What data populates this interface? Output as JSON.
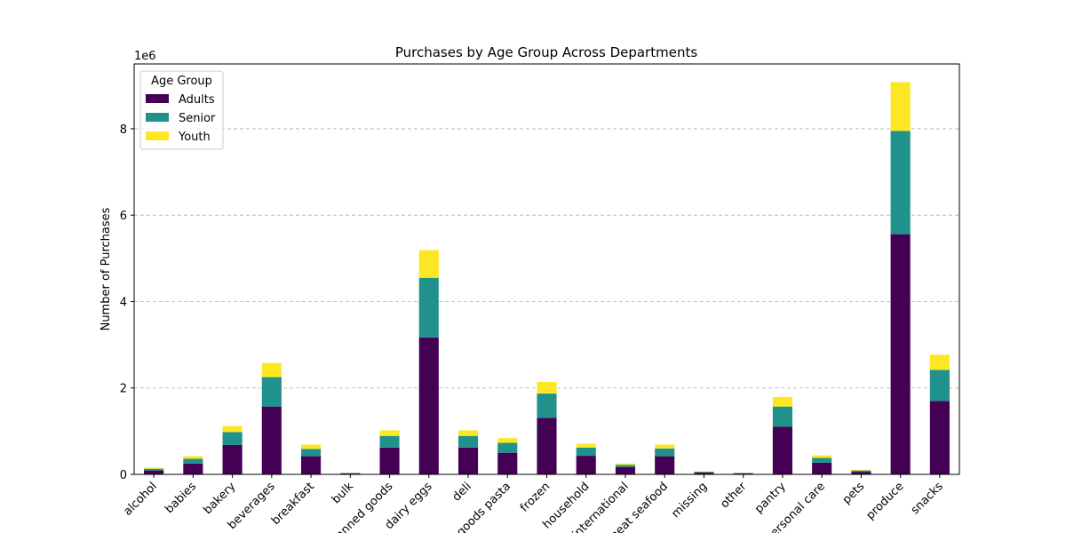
{
  "chart_data": {
    "type": "bar",
    "stacked": true,
    "title": "Purchases by Age Group Across Departments",
    "xlabel": "",
    "ylabel": "Number of Purchases",
    "y_scale_label": "1e6",
    "ylim": [
      0,
      9500000
    ],
    "yticks": [
      0,
      2000000,
      4000000,
      6000000,
      8000000
    ],
    "ytick_labels": [
      "0",
      "2",
      "4",
      "6",
      "8"
    ],
    "grid": "y-dashed",
    "legend": {
      "title": "Age Group",
      "placement": "top-left"
    },
    "categories": [
      "alcohol",
      "babies",
      "bakery",
      "beverages",
      "breakfast",
      "bulk",
      "canned goods",
      "dairy eggs",
      "deli",
      "dry goods pasta",
      "frozen",
      "household",
      "international",
      "meat seafood",
      "missing",
      "other",
      "pantry",
      "personal care",
      "pets",
      "produce",
      "snacks"
    ],
    "series": [
      {
        "name": "Adults",
        "color": "#440154",
        "values": [
          90000,
          250000,
          680000,
          1570000,
          420000,
          20000,
          620000,
          3170000,
          620000,
          500000,
          1310000,
          430000,
          170000,
          420000,
          40000,
          20000,
          1100000,
          270000,
          60000,
          5560000,
          1700000
        ]
      },
      {
        "name": "Senior",
        "color": "#21918c",
        "values": [
          40000,
          110000,
          300000,
          680000,
          170000,
          10000,
          270000,
          1380000,
          270000,
          230000,
          560000,
          190000,
          50000,
          180000,
          20000,
          10000,
          470000,
          110000,
          30000,
          2390000,
          720000
        ]
      },
      {
        "name": "Youth",
        "color": "#fde725",
        "values": [
          20000,
          60000,
          140000,
          330000,
          100000,
          5000,
          130000,
          640000,
          130000,
          110000,
          270000,
          90000,
          30000,
          90000,
          8000,
          5000,
          220000,
          60000,
          15000,
          1130000,
          350000
        ]
      }
    ]
  }
}
